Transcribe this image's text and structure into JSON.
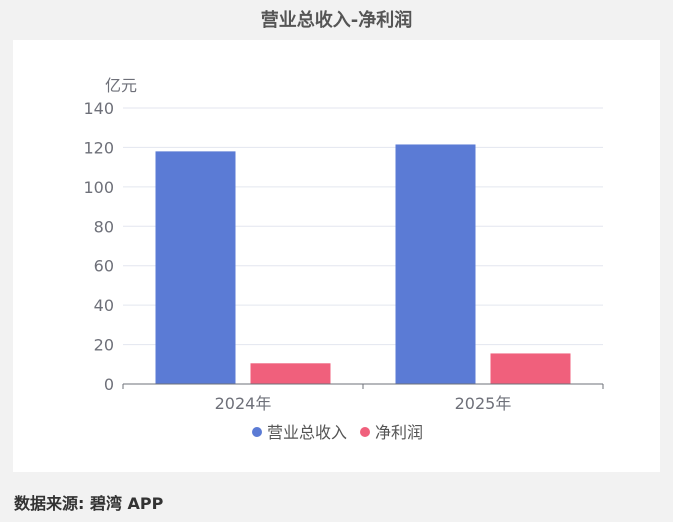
{
  "page": {
    "title": "营业总收入-净利润",
    "source": "数据来源: 碧湾 APP"
  },
  "chart_data": {
    "type": "bar",
    "title": "营业总收入-净利润",
    "ylabel": "亿元",
    "xlabel": "",
    "categories": [
      "2024年",
      "2025年"
    ],
    "series": [
      {
        "name": "营业总收入",
        "values": [
          118,
          121.5
        ],
        "color": "#5b7bd5"
      },
      {
        "name": "净利润",
        "values": [
          10.5,
          15.5
        ],
        "color": "#f0607c"
      }
    ],
    "ylim": [
      0,
      140
    ],
    "yticks": [
      0,
      20,
      40,
      60,
      80,
      100,
      120,
      140
    ],
    "ytick_labels": [
      "0",
      "20",
      "40",
      "60",
      "80",
      "100",
      "120",
      "140"
    ],
    "grid": true,
    "legend_position": "bottom-center"
  }
}
